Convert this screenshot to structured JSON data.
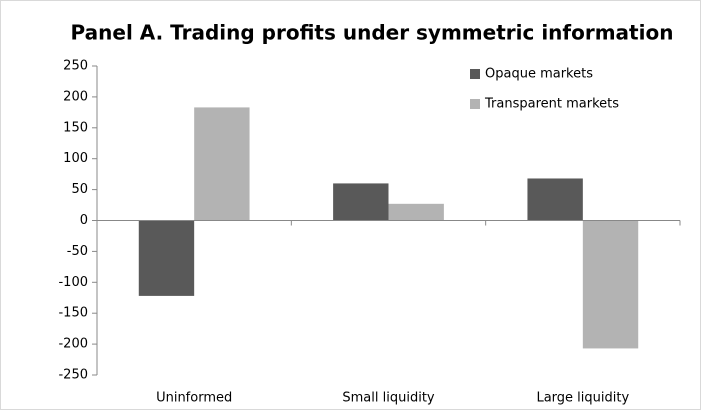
{
  "chart_data": {
    "type": "bar",
    "title": "Panel A. Trading profits under symmetric information",
    "categories": [
      "Uninformed",
      "Small liquidity",
      "Large liquidity"
    ],
    "series": [
      {
        "name": "Opaque markets",
        "color": "#595959",
        "values": [
          -122,
          60,
          68
        ]
      },
      {
        "name": "Transparent markets",
        "color": "#b3b3b3",
        "values": [
          183,
          27,
          -207
        ]
      }
    ],
    "ylim": [
      -250,
      250
    ],
    "yticks": [
      -250,
      -200,
      -150,
      -100,
      -50,
      0,
      50,
      100,
      150,
      200,
      250
    ],
    "grid": false,
    "legend": "top-right"
  }
}
